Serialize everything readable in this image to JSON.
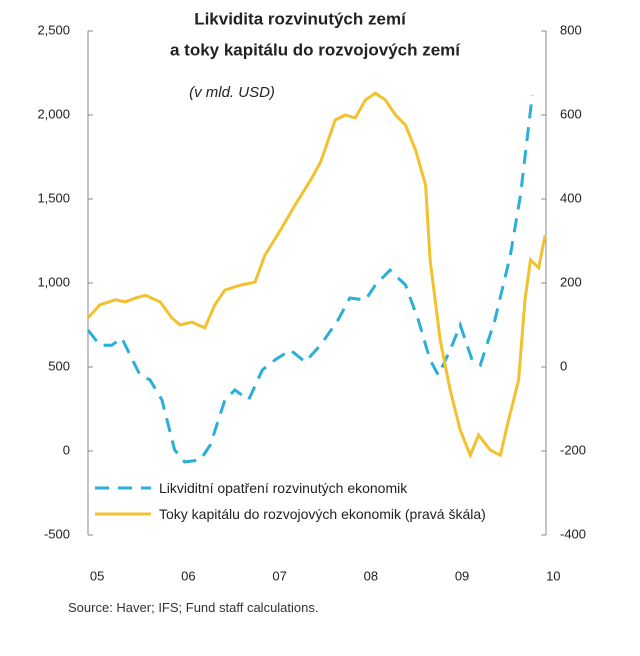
{
  "chart_data": {
    "type": "line",
    "title": [
      "Likvidita rozvinutých zemí",
      "a toky kapitálu do rozvojových zemí"
    ],
    "subtitle": "(v mld. USD)",
    "source": "Source: Haver;  IFS; Fund staff calculations.",
    "xlim": [
      2004.9,
      2009.92
    ],
    "xticks": [
      {
        "value": 2005,
        "label": "05"
      },
      {
        "value": 2006,
        "label": "06"
      },
      {
        "value": 2007,
        "label": "07"
      },
      {
        "value": 2008,
        "label": "08"
      },
      {
        "value": 2009,
        "label": "09"
      },
      {
        "value": 2010,
        "label": "10"
      }
    ],
    "ylim": [
      -500,
      2500
    ],
    "yticks": [
      -500,
      0,
      500,
      {
        "value": 1000,
        "label": "1,000"
      },
      {
        "value": 1500,
        "label": "1,500"
      },
      {
        "value": 2000,
        "label": "2,000"
      },
      {
        "value": 2500,
        "label": "2,500"
      }
    ],
    "y2lim": [
      -400,
      800
    ],
    "y2ticks": [
      -400,
      -200,
      0,
      200,
      400,
      600,
      800
    ],
    "series": [
      {
        "name": "Likviditní opatření rozvinutých ekonomik",
        "color": "#2ab0d8",
        "dash": true,
        "x": [
          2004.9,
          2005.03,
          2005.16,
          2005.27,
          2005.47,
          2005.58,
          2005.71,
          2005.85,
          2005.96,
          2006.13,
          2006.24,
          2006.4,
          2006.51,
          2006.66,
          2006.81,
          2006.95,
          2007.12,
          2007.28,
          2007.45,
          2007.64,
          2007.77,
          2007.94,
          2008.05,
          2008.21,
          2008.38,
          2008.52,
          2008.65,
          2008.74,
          2008.87,
          2008.98,
          2009.11,
          2009.2,
          2009.36,
          2009.53,
          2009.64,
          2009.77
        ],
        "values": [
          720,
          630,
          630,
          672,
          452,
          423,
          304,
          6,
          -65,
          -54,
          36,
          304,
          363,
          304,
          482,
          542,
          601,
          530,
          631,
          780,
          911,
          899,
          988,
          1077,
          988,
          780,
          542,
          452,
          601,
          750,
          542,
          512,
          780,
          1167,
          1524,
          2119
        ]
      },
      {
        "name": "Toky kapitálu do rozvojových ekonomik (pravá škála)",
        "color": "#f2c12e",
        "axis": "y2",
        "x": [
          2004.9,
          2005.03,
          2005.2,
          2005.31,
          2005.42,
          2005.53,
          2005.69,
          2005.82,
          2005.91,
          2006.04,
          2006.18,
          2006.29,
          2006.4,
          2006.57,
          2006.73,
          2006.84,
          2007.01,
          2007.17,
          2007.34,
          2007.45,
          2007.61,
          2007.72,
          2007.83,
          2007.94,
          2008.05,
          2008.16,
          2008.27,
          2008.38,
          2008.49,
          2008.6,
          2008.65,
          2008.76,
          2008.87,
          2008.98,
          2009.09,
          2009.18,
          2009.31,
          2009.42,
          2009.51,
          2009.62,
          2009.69,
          2009.75,
          2009.84,
          2009.91
        ],
        "values": [
          117,
          148,
          160,
          155,
          164,
          171,
          155,
          117,
          100,
          107,
          93,
          148,
          183,
          195,
          202,
          267,
          326,
          386,
          445,
          488,
          588,
          600,
          593,
          636,
          652,
          636,
          600,
          576,
          517,
          433,
          255,
          64,
          -55,
          -150,
          -210,
          -162,
          -198,
          -210,
          -126,
          -31,
          160,
          255,
          236,
          314
        ]
      }
    ]
  }
}
